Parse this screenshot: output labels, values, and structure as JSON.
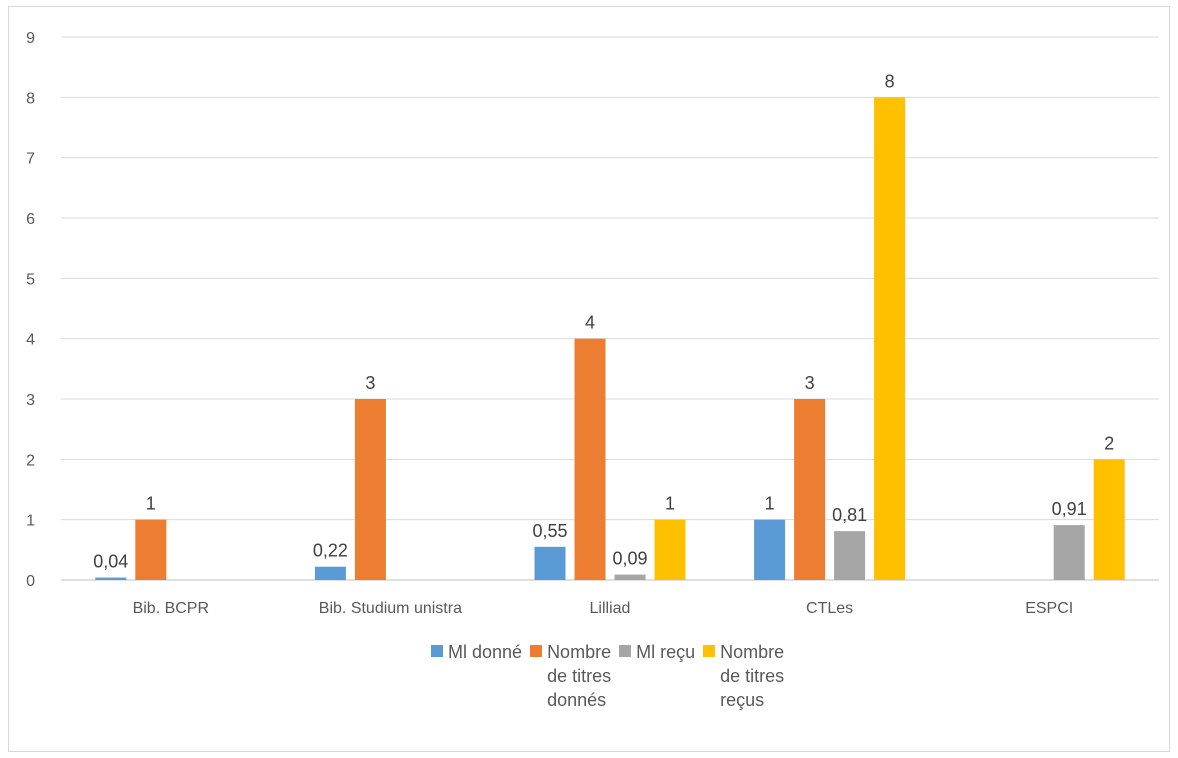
{
  "chart_data": {
    "type": "bar",
    "categories": [
      "Bib. BCPR",
      "Bib. Studium unistra",
      "Lilliad",
      "CTLes",
      "ESPCI"
    ],
    "ylim": [
      0,
      9
    ],
    "yticks": [
      "0",
      "1",
      "2",
      "3",
      "4",
      "5",
      "6",
      "7",
      "8",
      "9"
    ],
    "grid": true,
    "legend_position": "bottom",
    "series": [
      {
        "name": "Ml donné",
        "color": "#5B9BD5",
        "values": [
          0.04,
          0.22,
          0.55,
          1,
          null
        ],
        "labels": [
          "0,04",
          "0,22",
          "0,55",
          "1",
          ""
        ]
      },
      {
        "name": "Nombre\nde titres\ndonnés",
        "color": "#ED7D31",
        "values": [
          1,
          3,
          4,
          3,
          null
        ],
        "labels": [
          "1",
          "3",
          "4",
          "3",
          ""
        ]
      },
      {
        "name": "Ml reçu",
        "color": "#A5A5A5",
        "values": [
          null,
          null,
          0.09,
          0.81,
          0.91
        ],
        "labels": [
          "",
          "",
          "0,09",
          "0,81",
          "0,91"
        ]
      },
      {
        "name": "Nombre\nde titres\nreçus",
        "color": "#FFC000",
        "values": [
          null,
          null,
          1,
          8,
          2
        ],
        "labels": [
          "",
          "",
          "1",
          "8",
          "2"
        ]
      }
    ]
  }
}
